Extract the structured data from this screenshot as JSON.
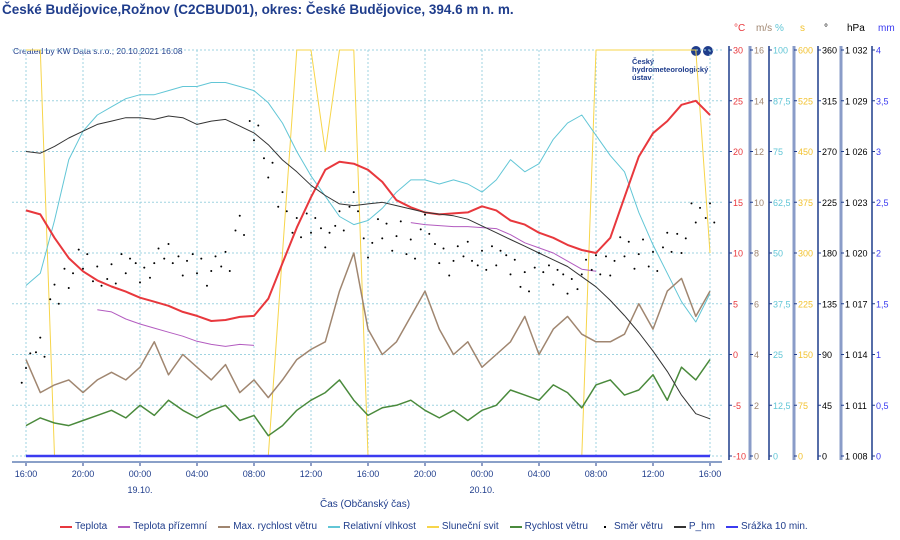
{
  "header": {
    "title": "České Budějovice,Rožnov (C2CBUD01), okres: České Budějovice, 394.6 m n. m.",
    "created": "Created by KW Data s.r.o., 20.10.2021 16:08",
    "logo_text": "Český hydrometeorologický ústav"
  },
  "chart_data": {
    "type": "line",
    "title": "České Budějovice,Rožnov (C2CBUD01), okres: České Budějovice, 394.6 m n. m.",
    "xlabel": "Čas (Občanský čas)",
    "x_hours_from_start": "0..48 hourly, start 18.10. 16:00",
    "x_ticks": [
      "16:00",
      "20:00",
      "00:00",
      "04:00",
      "08:00",
      "12:00",
      "16:00",
      "20:00",
      "00:00",
      "04:00",
      "08:00",
      "12:00",
      "16:00"
    ],
    "date_labels": [
      {
        "tick": 2,
        "label": "19.10."
      },
      {
        "tick": 8,
        "label": "20.10."
      }
    ],
    "grid": true,
    "legend_position": "bottom",
    "axes": [
      {
        "key": "temp",
        "unit": "°C",
        "min": -10,
        "max": 30,
        "ticks": [
          "30",
          "25",
          "20",
          "15",
          "10",
          "5",
          "0",
          "-5",
          "-10"
        ],
        "color": "#e8383d"
      },
      {
        "key": "wind",
        "unit": "m/s",
        "min": 0,
        "max": 16,
        "ticks": [
          "16",
          "14",
          "12",
          "10",
          "8",
          "6",
          "4",
          "2",
          "0"
        ],
        "color": "#a08670"
      },
      {
        "key": "rh",
        "unit": "%",
        "min": 0,
        "max": 100,
        "ticks": [
          "100",
          "87,5",
          "75",
          "62,5",
          "50",
          "37,5",
          "25",
          "12,5",
          "0"
        ],
        "color": "#62c6d6"
      },
      {
        "key": "sun",
        "unit": "s",
        "min": 0,
        "max": 600,
        "ticks": [
          "600",
          "525",
          "450",
          "375",
          "300",
          "225",
          "150",
          "75",
          "0"
        ],
        "color": "#f2c230"
      },
      {
        "key": "dir",
        "unit": "°",
        "min": 0,
        "max": 360,
        "ticks": [
          "360",
          "315",
          "270",
          "225",
          "180",
          "135",
          "90",
          "45",
          "0"
        ],
        "color": "#000000"
      },
      {
        "key": "p",
        "unit": "hPa",
        "min": 1008,
        "max": 1032,
        "ticks": [
          "1 032",
          "1 029",
          "1 026",
          "1 023",
          "1 020",
          "1 017",
          "1 014",
          "1 011",
          "1 008"
        ],
        "color": "#000000"
      },
      {
        "key": "rain",
        "unit": "mm",
        "min": 0,
        "max": 4,
        "ticks": [
          "4",
          "3,5",
          "3",
          "2,5",
          "2",
          "1,5",
          "1",
          "0,5",
          "0"
        ],
        "color": "#3b3bf0"
      }
    ],
    "series": [
      {
        "name": "Teplota",
        "axis": "temp",
        "color": "#e8383d",
        "kind": "line",
        "width": 2,
        "values": [
          14.2,
          13.8,
          11.5,
          9.5,
          8.2,
          7.3,
          6.7,
          6.2,
          5.6,
          5.2,
          4.8,
          4.2,
          3.8,
          3.3,
          3.4,
          3.7,
          3.8,
          5.5,
          9.0,
          12.5,
          15.5,
          18.2,
          19.0,
          18.8,
          18.2,
          17.0,
          15.2,
          14.5,
          14.0,
          13.8,
          13.9,
          14.0,
          14.6,
          14.2,
          13.2,
          12.8,
          12.0,
          11.5,
          10.8,
          10.3,
          10.0,
          11.5,
          15.5,
          19.5,
          21.8,
          23.0,
          24.6,
          25.0,
          23.6
        ]
      },
      {
        "name": "Teplota přízemní",
        "axis": "temp",
        "color": "#b35cc0",
        "kind": "line",
        "width": 1,
        "values": [
          null,
          null,
          null,
          null,
          null,
          4.4,
          4.2,
          3.5,
          3.0,
          2.6,
          2.2,
          1.8,
          1.3,
          1.0,
          0.8,
          1.0,
          0.9,
          null,
          null,
          null,
          null,
          null,
          null,
          null,
          null,
          null,
          null,
          13.0,
          12.8,
          12.7,
          12.6,
          12.6,
          12.5,
          12.4,
          11.8,
          11.0,
          10.5,
          10.0,
          9.2,
          8.4,
          8.2,
          null,
          null,
          null,
          null,
          null,
          null,
          null,
          null
        ]
      },
      {
        "name": "Max. rychlost větru",
        "axis": "wind",
        "color": "#a08670",
        "kind": "line",
        "width": 1.5,
        "values": [
          3.8,
          2.5,
          2.8,
          3.0,
          2.5,
          3.0,
          3.3,
          3.0,
          3.5,
          4.5,
          3.2,
          4.0,
          3.5,
          3.0,
          3.6,
          2.5,
          3.0,
          2.3,
          3.0,
          3.8,
          4.2,
          4.5,
          6.5,
          8.0,
          5.0,
          4.0,
          4.5,
          5.5,
          6.5,
          5.0,
          4.0,
          4.5,
          3.5,
          4.0,
          4.5,
          5.5,
          4.0,
          5.0,
          5.5,
          4.8,
          4.5,
          4.5,
          4.8,
          6.0,
          5.0,
          6.5,
          7.0,
          5.5,
          6.5
        ]
      },
      {
        "name": "Relativní vlhkost",
        "axis": "rh",
        "color": "#62c6d6",
        "kind": "line",
        "width": 1,
        "values": [
          42,
          45,
          58,
          73,
          80,
          84,
          86,
          88,
          89,
          89,
          90,
          91,
          91,
          92,
          92,
          91,
          90,
          87,
          82,
          75,
          69,
          64,
          59,
          57,
          58,
          61,
          65,
          68,
          68,
          67,
          68,
          67,
          65,
          68,
          73,
          70,
          72,
          78,
          82,
          84,
          79,
          74,
          70,
          60,
          52,
          45,
          38,
          33,
          40
        ]
      },
      {
        "name": "Sluneční svit",
        "axis": "sun",
        "color": "#f7d54a",
        "kind": "line",
        "width": 1,
        "values": [
          600,
          600,
          0,
          0,
          0,
          0,
          0,
          0,
          0,
          0,
          0,
          0,
          0,
          0,
          0,
          0,
          0,
          0,
          300,
          600,
          600,
          450,
          600,
          600,
          0,
          0,
          0,
          0,
          0,
          0,
          0,
          0,
          0,
          0,
          0,
          0,
          0,
          0,
          0,
          0,
          600,
          600,
          600,
          600,
          600,
          600,
          600,
          600,
          300
        ]
      },
      {
        "name": "Rychlost větru",
        "axis": "wind",
        "color": "#4a8a3c",
        "kind": "line",
        "width": 1.5,
        "values": [
          1.2,
          1.5,
          1.3,
          1.2,
          1.4,
          1.6,
          1.8,
          1.5,
          2.0,
          1.6,
          2.2,
          1.8,
          1.5,
          1.8,
          2.0,
          1.4,
          1.6,
          0.8,
          1.2,
          1.8,
          2.2,
          2.5,
          3.0,
          2.2,
          1.6,
          1.9,
          2.0,
          2.2,
          1.8,
          1.5,
          1.8,
          1.4,
          1.8,
          2.0,
          2.6,
          2.4,
          2.2,
          2.8,
          2.5,
          1.9,
          2.8,
          3.0,
          2.4,
          2.6,
          3.2,
          2.2,
          3.5,
          3.0,
          3.8
        ]
      },
      {
        "name": "Směr větru",
        "axis": "dir",
        "color": "#000000",
        "kind": "dots",
        "values": [
          80,
          100,
          140,
          160,
          170,
          165,
          160,
          175,
          160,
          170,
          180,
          175,
          170,
          165,
          175,
          200,
          290,
          250,
          230,
          200,
          210,
          190,
          215,
          225,
          190,
          200,
          195,
          185,
          200,
          180,
          175,
          185,
          170,
          180,
          165,
          160,
          170,
          165,
          150,
          160,
          170,
          175,
          185,
          180,
          175,
          185,
          190,
          210,
          220
        ]
      },
      {
        "name": "P_hm",
        "axis": "p",
        "color": "#333333",
        "kind": "line",
        "width": 1,
        "values": [
          1026.0,
          1025.9,
          1026.3,
          1026.8,
          1027.2,
          1027.6,
          1027.8,
          1028.0,
          1028.0,
          1027.9,
          1028.1,
          1028.0,
          1027.6,
          1027.8,
          1027.9,
          1027.5,
          1027.1,
          1026.4,
          1025.5,
          1024.8,
          1024.0,
          1023.4,
          1022.9,
          1022.8,
          1022.9,
          1023.0,
          1022.8,
          1022.6,
          1022.4,
          1022.3,
          1022.2,
          1022.0,
          1021.6,
          1021.2,
          1020.8,
          1020.4,
          1020.0,
          1019.6,
          1019.2,
          1018.6,
          1018.0,
          1017.2,
          1016.3,
          1015.3,
          1014.2,
          1013.0,
          1011.6,
          1010.5,
          1010.2
        ]
      },
      {
        "name": "Srážka 10 min.",
        "axis": "rain",
        "color": "#3b3bf0",
        "kind": "line",
        "width": 2.5,
        "values": [
          0,
          0,
          0,
          0,
          0,
          0,
          0,
          0,
          0,
          0,
          0,
          0,
          0,
          0,
          0,
          0,
          0,
          0,
          0,
          0,
          0,
          0,
          0,
          0,
          0,
          0,
          0,
          0,
          0,
          0,
          0,
          0,
          0,
          0,
          0,
          0,
          0,
          0,
          0,
          0,
          0,
          0,
          0,
          0,
          0,
          0,
          0,
          0,
          0
        ]
      }
    ]
  }
}
